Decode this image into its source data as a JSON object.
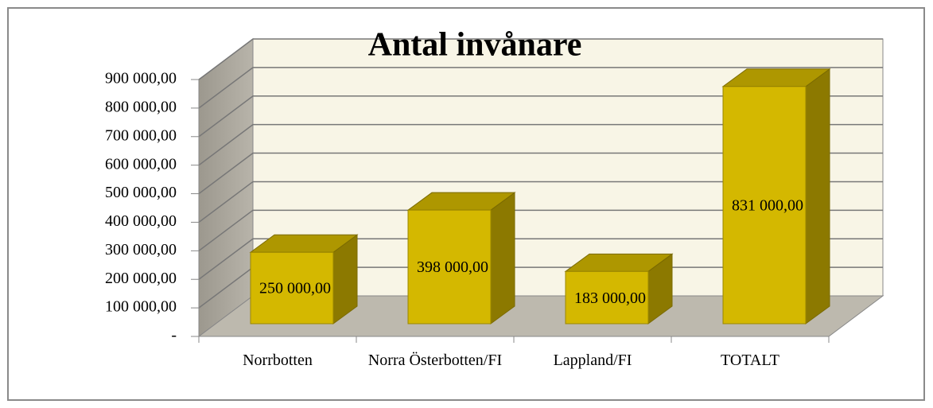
{
  "chart_data": {
    "type": "bar3d",
    "title": "Antal invånare",
    "categories": [
      "Norrbotten",
      "Norra Österbotten/FI",
      "Lappland/FI",
      "TOTALT"
    ],
    "values": [
      250000,
      398000,
      183000,
      831000
    ],
    "value_labels": [
      "250 000,00",
      "398 000,00",
      "183 000,00",
      "831 000,00"
    ],
    "color": "#d4b800",
    "ylim": [
      0,
      900000
    ],
    "yticks": [
      {
        "value": 0,
        "label": "-"
      },
      {
        "value": 100000,
        "label": "100 000,00"
      },
      {
        "value": 200000,
        "label": "200 000,00"
      },
      {
        "value": 300000,
        "label": "300 000,00"
      },
      {
        "value": 400000,
        "label": "400 000,00"
      },
      {
        "value": 500000,
        "label": "500 000,00"
      },
      {
        "value": 600000,
        "label": "600 000,00"
      },
      {
        "value": 700000,
        "label": "700 000,00"
      },
      {
        "value": 800000,
        "label": "800 000,00"
      },
      {
        "value": 900000,
        "label": "900 000,00"
      }
    ],
    "grid": true
  }
}
